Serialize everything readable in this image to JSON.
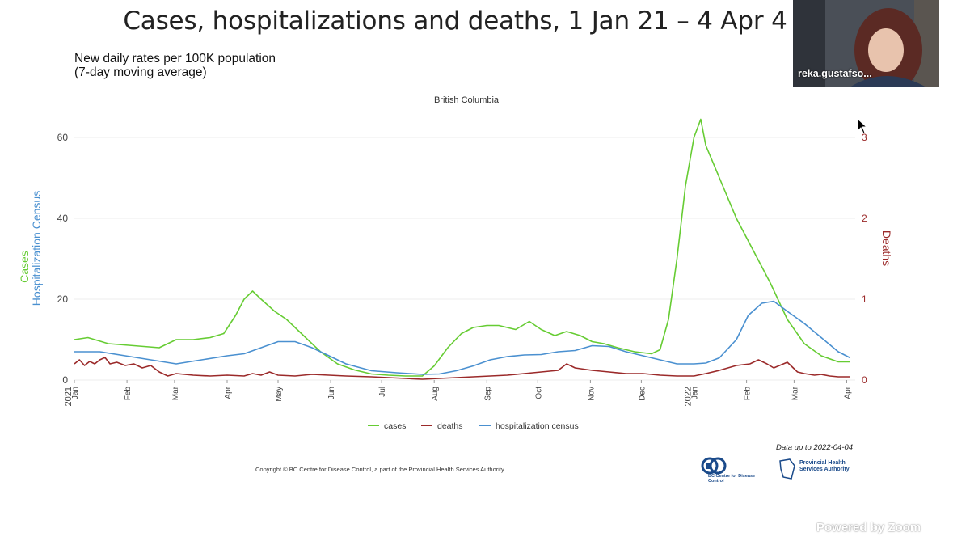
{
  "slide": {
    "title": "Cases, hospitalizations and deaths, 1 Jan 21 – 4 Apr 4",
    "subtitle_line1": "New daily rates per 100K population",
    "subtitle_line2": "(7-day moving average)"
  },
  "video": {
    "participant_name": "reka.gustafso..."
  },
  "footer": {
    "copyright": "Copyright © BC Centre for Disease Control, a part of the Provincial Health Services Authority",
    "data_up_to": "Data up to 2022-04-04",
    "cdc_logo_text": "BC Centre for Disease Control",
    "phsa_logo_line1": "Provincial Health",
    "phsa_logo_line2": "Services Authority",
    "zoom_watermark": "Powered by Zoom"
  },
  "colors": {
    "cases": "#66cc33",
    "deaths": "#9b2a2a",
    "hospitalization": "#4a90d0"
  },
  "chart_data": {
    "type": "line",
    "title": "British Columbia",
    "ylabel_left_1": "Cases",
    "ylabel_left_2": "Hospitalization Census",
    "ylabel_right": "Deaths",
    "ylim_left": [
      0,
      65
    ],
    "ylim_right": [
      0,
      3.25
    ],
    "yticks_left": [
      0,
      20,
      40,
      60
    ],
    "yticks_right": [
      0,
      1,
      2,
      3
    ],
    "xlim": [
      0,
      460
    ],
    "x_unit": "days since 2021-01-01",
    "xtick_positions": [
      0,
      31,
      59,
      90,
      120,
      151,
      181,
      212,
      243,
      273,
      304,
      334,
      365,
      396,
      424,
      455
    ],
    "xtick_labels": [
      "Jan",
      "Feb",
      "Mar",
      "Apr",
      "May",
      "Jun",
      "Jul",
      "Aug",
      "Sep",
      "Oct",
      "Nov",
      "Dec",
      "Jan",
      "Feb",
      "Mar",
      "Apr"
    ],
    "year_labels": [
      {
        "x": 0,
        "label": "2021"
      },
      {
        "x": 365,
        "label": "2022"
      }
    ],
    "legend": [
      "cases",
      "deaths",
      "hospitalization census"
    ],
    "series": [
      {
        "name": "cases",
        "axis": "left",
        "x": [
          0,
          8,
          20,
          35,
          50,
          60,
          70,
          80,
          88,
          95,
          100,
          105,
          110,
          118,
          125,
          135,
          145,
          155,
          165,
          175,
          185,
          195,
          205,
          212,
          220,
          228,
          235,
          243,
          250,
          260,
          268,
          275,
          283,
          290,
          298,
          305,
          312,
          320,
          330,
          340,
          345,
          350,
          355,
          360,
          365,
          369,
          372,
          380,
          390,
          400,
          410,
          420,
          430,
          440,
          450,
          457
        ],
        "values": [
          10,
          10.5,
          9,
          8.5,
          8,
          10,
          10,
          10.5,
          11.5,
          16,
          20,
          22,
          20,
          17,
          15,
          11,
          7,
          4,
          2.5,
          1.5,
          1.2,
          1,
          1,
          3.5,
          8,
          11.5,
          13,
          13.5,
          13.5,
          12.5,
          14.5,
          12.5,
          11,
          12,
          11,
          9.5,
          9,
          8,
          7,
          6.5,
          7.5,
          15,
          30,
          48,
          60,
          64.5,
          58,
          50,
          40,
          32,
          24,
          15,
          9,
          6,
          4.5,
          4.5
        ]
      },
      {
        "name": "hospitalization census",
        "axis": "left",
        "x": [
          0,
          15,
          30,
          45,
          60,
          75,
          90,
          100,
          110,
          120,
          130,
          140,
          150,
          160,
          175,
          190,
          205,
          215,
          225,
          235,
          245,
          255,
          265,
          275,
          285,
          295,
          305,
          315,
          325,
          335,
          345,
          355,
          360,
          365,
          372,
          380,
          390,
          397,
          405,
          412,
          420,
          430,
          440,
          450,
          457
        ],
        "values": [
          7,
          7,
          6,
          5,
          4,
          5,
          6,
          6.5,
          8,
          9.5,
          9.5,
          8,
          6,
          4,
          2.3,
          1.8,
          1.4,
          1.5,
          2.3,
          3.5,
          5,
          5.8,
          6.2,
          6.3,
          7,
          7.3,
          8.5,
          8.3,
          7,
          6,
          5,
          4,
          4,
          4,
          4.2,
          5.5,
          10,
          16,
          19,
          19.5,
          17,
          14,
          10.5,
          7,
          5.5
        ]
      },
      {
        "name": "deaths",
        "axis": "right",
        "x": [
          0,
          3,
          6,
          9,
          12,
          15,
          18,
          21,
          25,
          30,
          35,
          40,
          45,
          50,
          55,
          60,
          70,
          80,
          90,
          100,
          105,
          110,
          115,
          120,
          130,
          140,
          150,
          160,
          175,
          185,
          195,
          205,
          215,
          225,
          235,
          245,
          255,
          265,
          275,
          285,
          290,
          295,
          305,
          315,
          325,
          335,
          345,
          355,
          365,
          372,
          380,
          390,
          398,
          403,
          408,
          412,
          420,
          426,
          430,
          436,
          440,
          445,
          450,
          457
        ],
        "values": [
          0.2,
          0.25,
          0.18,
          0.23,
          0.2,
          0.25,
          0.28,
          0.2,
          0.22,
          0.18,
          0.2,
          0.15,
          0.18,
          0.1,
          0.05,
          0.08,
          0.06,
          0.05,
          0.06,
          0.05,
          0.08,
          0.06,
          0.1,
          0.06,
          0.05,
          0.07,
          0.06,
          0.05,
          0.04,
          0.03,
          0.02,
          0.01,
          0.02,
          0.03,
          0.04,
          0.05,
          0.06,
          0.08,
          0.1,
          0.12,
          0.2,
          0.15,
          0.12,
          0.1,
          0.08,
          0.08,
          0.06,
          0.05,
          0.05,
          0.08,
          0.12,
          0.18,
          0.2,
          0.25,
          0.2,
          0.15,
          0.22,
          0.1,
          0.08,
          0.06,
          0.07,
          0.05,
          0.04,
          0.04
        ]
      }
    ]
  }
}
